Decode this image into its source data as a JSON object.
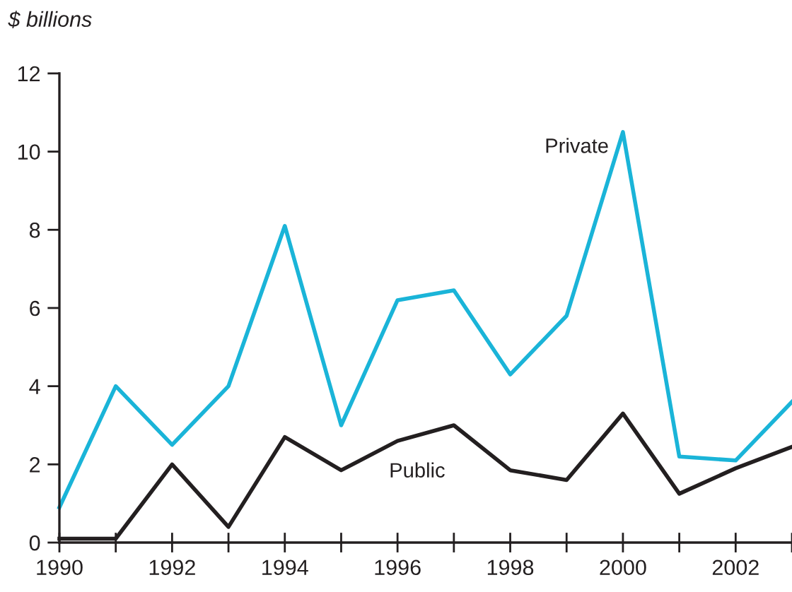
{
  "chart_data": {
    "type": "line",
    "ylabel": "$ billions",
    "x": [
      1990,
      1991,
      1992,
      1993,
      1994,
      1995,
      1996,
      1997,
      1998,
      1999,
      2000,
      2001,
      2002,
      2003
    ],
    "series": [
      {
        "name": "Private",
        "color": "#1ab4d8",
        "values": [
          0.9,
          4.0,
          2.5,
          4.0,
          8.1,
          3.0,
          6.2,
          6.45,
          4.3,
          5.8,
          10.5,
          2.2,
          2.1,
          3.6
        ]
      },
      {
        "name": "Public",
        "color": "#231f20",
        "values": [
          0.1,
          0.1,
          2.0,
          0.4,
          2.7,
          1.85,
          2.6,
          3.0,
          1.85,
          1.6,
          3.3,
          1.25,
          1.9,
          2.45
        ]
      }
    ],
    "xlim": [
      1990,
      2003
    ],
    "xticks": [
      1990,
      {
        "value": 1991,
        "label": null
      },
      1992,
      {
        "value": 1993,
        "label": null
      },
      1994,
      {
        "value": 1995,
        "label": null
      },
      1996,
      {
        "value": 1997,
        "label": null
      },
      1998,
      {
        "value": 1999,
        "label": null
      },
      2000,
      {
        "value": 2001,
        "label": null
      },
      2002,
      {
        "value": 2003,
        "label": null
      }
    ],
    "ylim": [
      0,
      12
    ],
    "yticks": [
      0,
      2,
      4,
      6,
      8,
      10,
      12
    ],
    "grid": false,
    "legend": false,
    "marker": "none",
    "line_style": "solid"
  }
}
